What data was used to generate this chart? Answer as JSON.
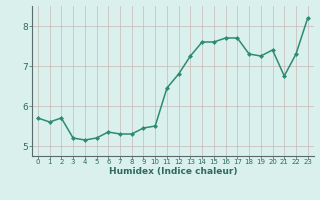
{
  "x": [
    0,
    1,
    2,
    3,
    4,
    5,
    6,
    7,
    8,
    9,
    10,
    11,
    12,
    13,
    14,
    15,
    16,
    17,
    18,
    19,
    20,
    21,
    22,
    23
  ],
  "y": [
    5.7,
    5.6,
    5.7,
    5.2,
    5.15,
    5.2,
    5.35,
    5.3,
    5.3,
    5.45,
    5.5,
    6.45,
    6.8,
    7.25,
    7.6,
    7.6,
    7.7,
    7.7,
    7.3,
    7.25,
    7.4,
    6.75,
    7.3,
    8.2
  ],
  "xlabel": "Humidex (Indice chaleur)",
  "ylabel": "",
  "ylim": [
    4.75,
    8.5
  ],
  "xlim": [
    -0.5,
    23.5
  ],
  "yticks": [
    5,
    6,
    7,
    8
  ],
  "xticks": [
    0,
    1,
    2,
    3,
    4,
    5,
    6,
    7,
    8,
    9,
    10,
    11,
    12,
    13,
    14,
    15,
    16,
    17,
    18,
    19,
    20,
    21,
    22,
    23
  ],
  "line_color": "#2d8b72",
  "marker": "D",
  "marker_size": 2.0,
  "bg_color": "#daf0ec",
  "grid_color": "#c8b8b8",
  "spine_color": "#5a6a6a",
  "tick_label_color": "#2e6b5e",
  "xlabel_color": "#2e6b5e",
  "xlabel_fontsize": 6.5,
  "ytick_fontsize": 6.5,
  "xtick_fontsize": 5.0,
  "linewidth": 1.1
}
